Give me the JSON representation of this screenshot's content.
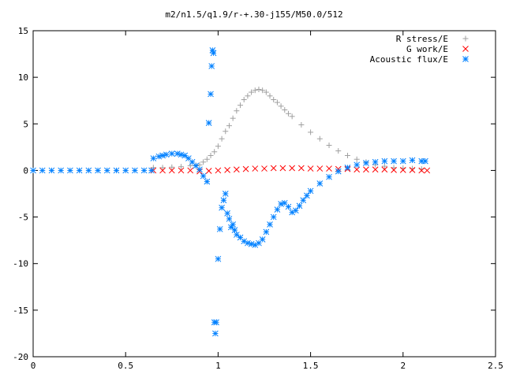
{
  "chart_data": {
    "type": "scatter",
    "title": "m2/n1.5/q1.9/r-+.30-j155/M50.0/512",
    "xlabel": "",
    "ylabel": "",
    "xlim": [
      0,
      2.5
    ],
    "ylim": [
      -20,
      15
    ],
    "x_ticks": [
      "0",
      "0.5",
      "1",
      "1.5",
      "2",
      "2.5"
    ],
    "y_ticks": [
      "15",
      "10",
      "5",
      "0",
      "-5",
      "-10",
      "-15",
      "-20"
    ],
    "grid": false,
    "legend_position": "top-right",
    "series": [
      {
        "name": "R stress/E",
        "marker": "plus",
        "color": "#a0a0a0",
        "x": [
          0.65,
          0.7,
          0.75,
          0.8,
          0.85,
          0.88,
          0.9,
          0.92,
          0.94,
          0.96,
          0.98,
          1.0,
          1.02,
          1.04,
          1.06,
          1.08,
          1.1,
          1.12,
          1.14,
          1.16,
          1.18,
          1.2,
          1.22,
          1.24,
          1.26,
          1.28,
          1.3,
          1.32,
          1.34,
          1.36,
          1.38,
          1.4,
          1.45,
          1.5,
          1.55,
          1.6,
          1.65,
          1.7,
          1.75,
          1.8,
          1.85,
          1.9,
          1.95,
          2.0,
          2.05,
          2.1
        ],
        "y": [
          0.3,
          0.3,
          0.35,
          0.4,
          0.5,
          0.55,
          0.6,
          0.9,
          1.2,
          1.6,
          2.0,
          2.6,
          3.4,
          4.2,
          4.8,
          5.6,
          6.4,
          7.0,
          7.6,
          8.0,
          8.4,
          8.6,
          8.7,
          8.6,
          8.4,
          8.0,
          7.6,
          7.3,
          6.9,
          6.5,
          6.1,
          5.8,
          4.9,
          4.1,
          3.4,
          2.7,
          2.1,
          1.6,
          1.2,
          0.9,
          0.6,
          0.45,
          0.3,
          0.25,
          0.2,
          0.15
        ]
      },
      {
        "name": "G work/E",
        "marker": "cross",
        "color": "#ff0000",
        "x": [
          0.65,
          0.7,
          0.75,
          0.8,
          0.85,
          0.9,
          0.95,
          1.0,
          1.05,
          1.1,
          1.15,
          1.2,
          1.25,
          1.3,
          1.35,
          1.4,
          1.45,
          1.5,
          1.55,
          1.6,
          1.65,
          1.7,
          1.75,
          1.8,
          1.85,
          1.9,
          1.95,
          2.0,
          2.05,
          2.1,
          2.13
        ],
        "y": [
          0.0,
          0.0,
          0.0,
          0.0,
          0.0,
          -0.1,
          -0.05,
          0.0,
          0.05,
          0.1,
          0.15,
          0.2,
          0.2,
          0.25,
          0.25,
          0.25,
          0.25,
          0.2,
          0.2,
          0.2,
          0.15,
          0.15,
          0.1,
          0.1,
          0.1,
          0.1,
          0.05,
          0.05,
          0.05,
          0.0,
          0.0
        ]
      },
      {
        "name": "Acoustic flux/E",
        "marker": "star",
        "color": "#0080ff",
        "x": [
          0.0,
          0.05,
          0.1,
          0.15,
          0.2,
          0.25,
          0.3,
          0.35,
          0.4,
          0.45,
          0.5,
          0.55,
          0.6,
          0.64,
          0.65,
          0.68,
          0.7,
          0.72,
          0.75,
          0.78,
          0.8,
          0.82,
          0.84,
          0.86,
          0.88,
          0.9,
          0.92,
          0.94,
          0.95,
          0.96,
          0.965,
          0.97,
          0.975,
          0.98,
          0.985,
          0.99,
          1.0,
          1.01,
          1.02,
          1.03,
          1.04,
          1.05,
          1.06,
          1.07,
          1.08,
          1.09,
          1.1,
          1.12,
          1.14,
          1.16,
          1.18,
          1.2,
          1.22,
          1.24,
          1.26,
          1.28,
          1.3,
          1.32,
          1.34,
          1.36,
          1.38,
          1.4,
          1.42,
          1.44,
          1.46,
          1.48,
          1.5,
          1.55,
          1.6,
          1.65,
          1.7,
          1.75,
          1.8,
          1.85,
          1.9,
          1.95,
          2.0,
          2.05,
          2.1,
          2.12
        ],
        "y": [
          0.0,
          0.0,
          0.0,
          0.0,
          0.0,
          0.0,
          0.0,
          0.0,
          0.0,
          0.0,
          0.0,
          0.0,
          0.0,
          0.0,
          1.3,
          1.5,
          1.6,
          1.7,
          1.8,
          1.8,
          1.7,
          1.6,
          1.3,
          0.9,
          0.5,
          0.1,
          -0.6,
          -1.2,
          5.1,
          8.2,
          11.2,
          12.9,
          12.6,
          -16.3,
          -17.5,
          -16.3,
          -9.5,
          -6.3,
          -4.0,
          -3.2,
          -2.5,
          -4.6,
          -5.2,
          -6.1,
          -5.8,
          -6.4,
          -6.9,
          -7.2,
          -7.6,
          -7.8,
          -7.9,
          -8.0,
          -7.8,
          -7.4,
          -6.6,
          -5.8,
          -5.0,
          -4.2,
          -3.6,
          -3.5,
          -3.9,
          -4.5,
          -4.3,
          -3.8,
          -3.2,
          -2.7,
          -2.2,
          -1.4,
          -0.7,
          -0.1,
          0.3,
          0.6,
          0.8,
          0.9,
          1.0,
          1.0,
          1.0,
          1.1,
          1.0,
          1.0
        ]
      }
    ]
  }
}
